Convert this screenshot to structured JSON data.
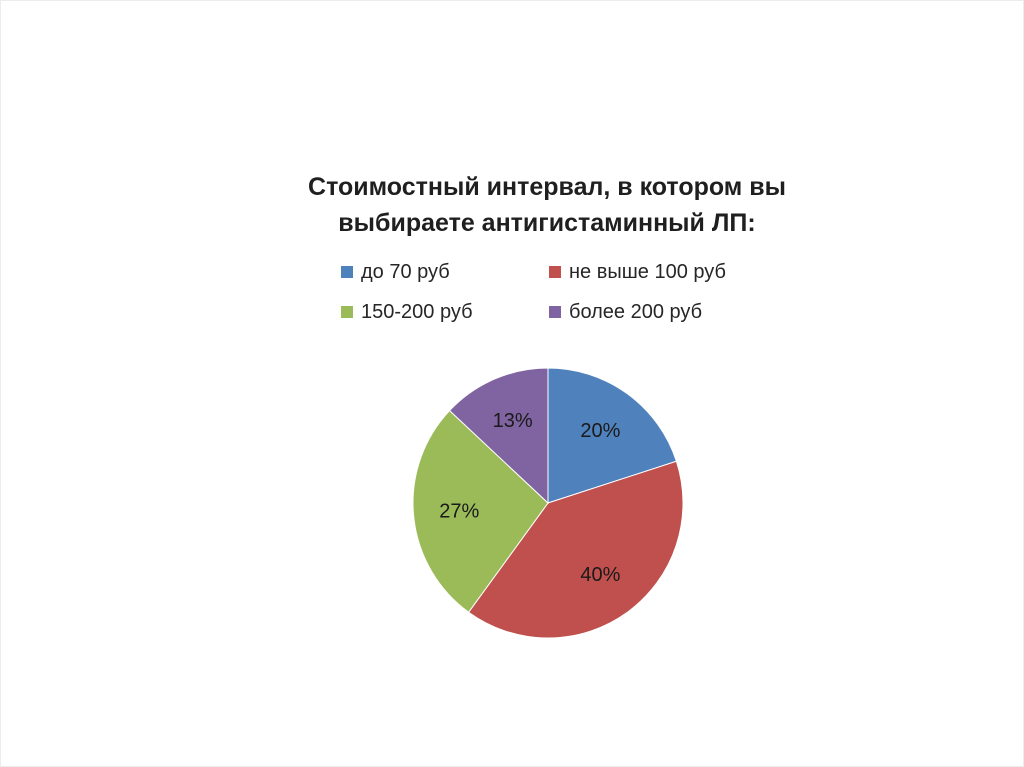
{
  "chart_data": {
    "type": "pie",
    "title_lines": [
      "Стоимостный интервал, в котором вы",
      "выбираете антигистаминный ЛП:"
    ],
    "categories": [
      "до 70 руб",
      "не выше 100 руб",
      "150-200 руб",
      "более 200 руб"
    ],
    "values": [
      20,
      40,
      27,
      13
    ],
    "labels": [
      "20%",
      "40%",
      "27%",
      "13%"
    ],
    "colors": [
      "#4f81bd",
      "#c0504d",
      "#9bbb59",
      "#8064a2"
    ],
    "legend_position": "top",
    "start_angle": "12 o'clock, clockwise"
  }
}
